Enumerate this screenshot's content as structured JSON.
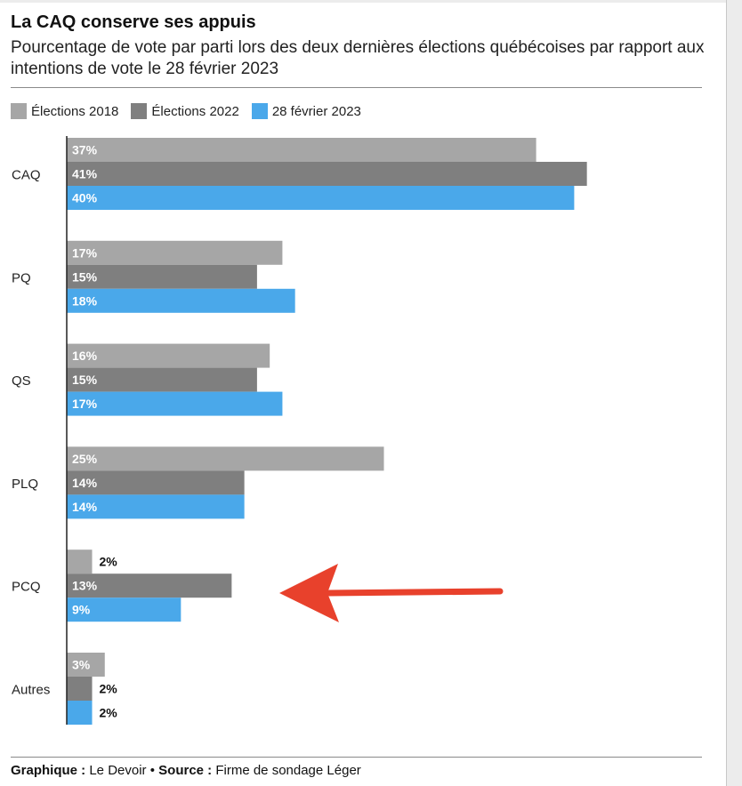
{
  "header": {
    "title": "La CAQ conserve ses appuis",
    "subtitle": "Pourcentage de vote par parti lors des deux dernières élections québécoises par rapport aux intentions de vote le 28 février 2023"
  },
  "footer": {
    "graphic_label": "Graphique :",
    "graphic_value": "Le Devoir",
    "separator": "•",
    "source_label": "Source :",
    "source_value": "Firme de sondage Léger"
  },
  "annotation": {
    "arrow_color": "#e8412c",
    "arrow_target": "PCQ"
  },
  "chart_data": {
    "type": "bar",
    "orientation": "horizontal",
    "title": "La CAQ conserve ses appuis",
    "subtitle": "Pourcentage de vote par parti lors des deux dernières élections québécoises par rapport aux intentions de vote le 28 février 2023",
    "categories": [
      "CAQ",
      "PQ",
      "QS",
      "PLQ",
      "PCQ",
      "Autres"
    ],
    "series": [
      {
        "name": "Élections 2018",
        "color": "#a6a6a6",
        "values": [
          37,
          17,
          16,
          25,
          2,
          3
        ]
      },
      {
        "name": "Élections 2022",
        "color": "#7f7f7f",
        "values": [
          41,
          15,
          15,
          14,
          13,
          2
        ]
      },
      {
        "name": "28 février 2023",
        "color": "#4aa8ea",
        "values": [
          40,
          18,
          17,
          14,
          9,
          2
        ]
      }
    ],
    "value_suffix": "%",
    "xlabel": "",
    "ylabel": "",
    "xlim": [
      0,
      41
    ],
    "grid": false,
    "legend_position": "top-left"
  }
}
